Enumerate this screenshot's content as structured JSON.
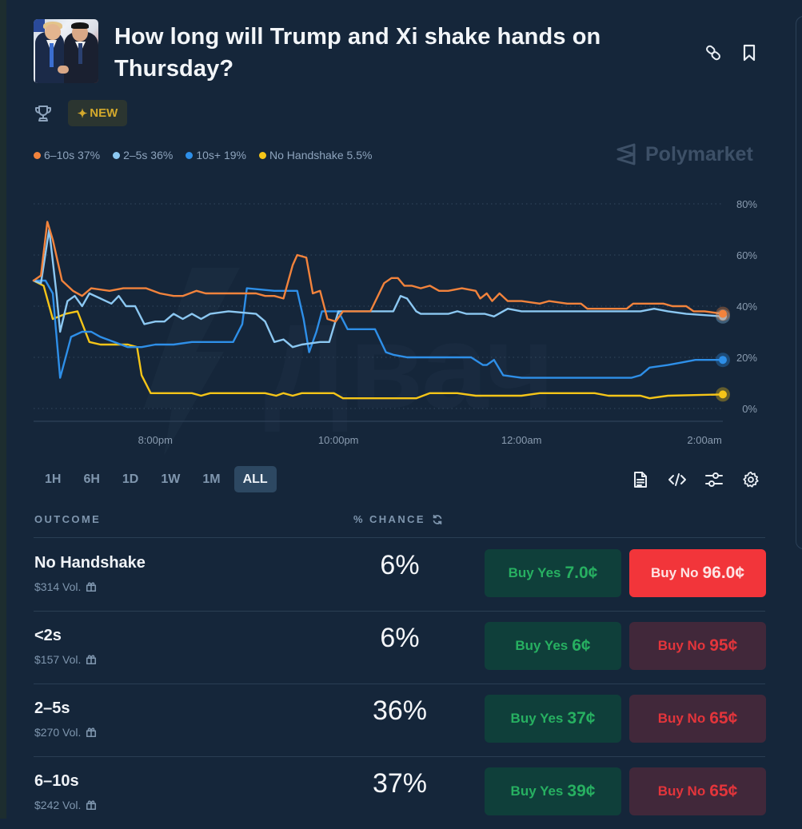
{
  "market": {
    "title": "How long will Trump and Xi shake hands on Thursday?",
    "badge": "NEW",
    "badge_icon": "sparkle-icon",
    "brand": "Polymarket"
  },
  "header_actions": {
    "link_icon": "link-icon",
    "bookmark_icon": "bookmark-icon"
  },
  "legend": [
    {
      "label": "6–10s 37%",
      "color": "#f2833c"
    },
    {
      "label": "2–5s 36%",
      "color": "#8cc8f2"
    },
    {
      "label": "10s+ 19%",
      "color": "#2e8fe8"
    },
    {
      "label": "No Handshake 5.5%",
      "color": "#f5c518"
    }
  ],
  "range_tabs": [
    {
      "label": "1H",
      "active": false
    },
    {
      "label": "6H",
      "active": false
    },
    {
      "label": "1D",
      "active": false
    },
    {
      "label": "1W",
      "active": false
    },
    {
      "label": "1M",
      "active": false
    },
    {
      "label": "ALL",
      "active": true
    }
  ],
  "chart_tools": [
    "document-icon",
    "code-icon",
    "sliders-icon",
    "gear-icon"
  ],
  "table": {
    "col_outcome": "OUTCOME",
    "col_chance": "% CHANCE",
    "rows": [
      {
        "name": "No Handshake",
        "volume": "$314 Vol.",
        "chance": "6%",
        "yes_label": "Buy Yes",
        "yes_price": "7.0¢",
        "no_label": "Buy No",
        "no_price": "96.0¢",
        "no_highlight": true
      },
      {
        "name": "<2s",
        "volume": "$157 Vol.",
        "chance": "6%",
        "yes_label": "Buy Yes",
        "yes_price": "6¢",
        "no_label": "Buy No",
        "no_price": "95¢",
        "no_highlight": false
      },
      {
        "name": "2–5s",
        "volume": "$270 Vol.",
        "chance": "36%",
        "yes_label": "Buy Yes",
        "yes_price": "37¢",
        "no_label": "Buy No",
        "no_price": "65¢",
        "no_highlight": false
      },
      {
        "name": "6–10s",
        "volume": "$242 Vol.",
        "chance": "37%",
        "yes_label": "Buy Yes",
        "yes_price": "39¢",
        "no_label": "Buy No",
        "no_price": "65¢",
        "no_highlight": false
      }
    ]
  },
  "chart_data": {
    "type": "line",
    "title": "",
    "xlabel": "",
    "ylabel": "",
    "x_unit": "hours relative to 8:00pm",
    "xlim": [
      -1.33,
      6.2
    ],
    "ylim": [
      0,
      80
    ],
    "x_ticks": [
      {
        "t": 0,
        "label": "8:00pm"
      },
      {
        "t": 2,
        "label": "10:00pm"
      },
      {
        "t": 4,
        "label": "12:00am"
      },
      {
        "t": 6,
        "label": "2:00am"
      }
    ],
    "y_ticks": [
      {
        "v": 0,
        "label": "0%"
      },
      {
        "v": 20,
        "label": "20%"
      },
      {
        "v": 40,
        "label": "40%"
      },
      {
        "v": 60,
        "label": "60%"
      },
      {
        "v": 80,
        "label": "80%"
      }
    ],
    "grid": true,
    "legend_position": "top-left",
    "series": [
      {
        "name": "6–10s",
        "color": "#f2833c",
        "final": 37,
        "points": [
          [
            -1.33,
            50
          ],
          [
            -1.25,
            52
          ],
          [
            -1.18,
            73
          ],
          [
            -1.12,
            66
          ],
          [
            -1.02,
            50
          ],
          [
            -0.9,
            46
          ],
          [
            -0.8,
            44
          ],
          [
            -0.7,
            47
          ],
          [
            -0.5,
            46
          ],
          [
            -0.35,
            47
          ],
          [
            -0.1,
            47
          ],
          [
            0.05,
            45
          ],
          [
            0.2,
            44
          ],
          [
            0.3,
            44
          ],
          [
            0.45,
            46
          ],
          [
            0.55,
            45
          ],
          [
            0.8,
            45
          ],
          [
            1.1,
            45
          ],
          [
            1.2,
            44
          ],
          [
            1.3,
            44
          ],
          [
            1.4,
            43
          ],
          [
            1.5,
            56
          ],
          [
            1.55,
            60
          ],
          [
            1.65,
            59
          ],
          [
            1.72,
            45
          ],
          [
            1.8,
            46
          ],
          [
            1.88,
            35
          ],
          [
            1.97,
            34
          ],
          [
            2.05,
            38
          ],
          [
            2.25,
            38
          ],
          [
            2.35,
            38
          ],
          [
            2.5,
            49
          ],
          [
            2.58,
            51
          ],
          [
            2.65,
            51
          ],
          [
            2.72,
            48
          ],
          [
            2.8,
            48
          ],
          [
            2.9,
            47
          ],
          [
            3.0,
            48
          ],
          [
            3.1,
            46
          ],
          [
            3.2,
            46
          ],
          [
            3.35,
            47
          ],
          [
            3.5,
            46
          ],
          [
            3.55,
            43
          ],
          [
            3.62,
            45
          ],
          [
            3.68,
            42
          ],
          [
            3.76,
            45
          ],
          [
            3.85,
            42
          ],
          [
            4.0,
            42
          ],
          [
            4.2,
            41
          ],
          [
            4.3,
            42
          ],
          [
            4.5,
            41
          ],
          [
            4.65,
            41
          ],
          [
            4.72,
            39
          ],
          [
            5.15,
            39
          ],
          [
            5.22,
            41
          ],
          [
            5.55,
            41
          ],
          [
            5.65,
            40
          ],
          [
            5.8,
            40
          ],
          [
            5.88,
            38
          ],
          [
            6.0,
            38
          ],
          [
            6.2,
            37
          ]
        ]
      },
      {
        "name": "2–5s",
        "color": "#8cc8f2",
        "final": 36,
        "points": [
          [
            -1.33,
            50
          ],
          [
            -1.25,
            49
          ],
          [
            -1.16,
            70
          ],
          [
            -1.08,
            45
          ],
          [
            -1.04,
            30
          ],
          [
            -0.96,
            42
          ],
          [
            -0.88,
            44
          ],
          [
            -0.8,
            40
          ],
          [
            -0.72,
            45
          ],
          [
            -0.6,
            43
          ],
          [
            -0.48,
            41
          ],
          [
            -0.4,
            44
          ],
          [
            -0.32,
            40
          ],
          [
            -0.22,
            40
          ],
          [
            -0.12,
            33
          ],
          [
            0.0,
            34
          ],
          [
            0.1,
            34
          ],
          [
            0.2,
            37
          ],
          [
            0.3,
            35
          ],
          [
            0.4,
            37
          ],
          [
            0.5,
            35
          ],
          [
            0.6,
            37
          ],
          [
            0.8,
            38
          ],
          [
            1.1,
            37
          ],
          [
            1.2,
            34
          ],
          [
            1.3,
            26
          ],
          [
            1.4,
            27
          ],
          [
            1.5,
            24
          ],
          [
            1.6,
            25
          ],
          [
            1.8,
            26
          ],
          [
            1.9,
            26
          ],
          [
            2.0,
            38
          ],
          [
            2.6,
            38
          ],
          [
            2.68,
            44
          ],
          [
            2.75,
            43
          ],
          [
            2.85,
            38
          ],
          [
            2.9,
            37
          ],
          [
            3.0,
            37
          ],
          [
            3.2,
            37
          ],
          [
            3.3,
            38
          ],
          [
            3.4,
            37
          ],
          [
            3.6,
            37
          ],
          [
            3.7,
            36
          ],
          [
            3.85,
            39
          ],
          [
            4.0,
            38
          ],
          [
            4.5,
            38
          ],
          [
            5.3,
            38
          ],
          [
            5.45,
            39
          ],
          [
            5.6,
            38
          ],
          [
            5.8,
            37
          ],
          [
            6.2,
            36
          ]
        ]
      },
      {
        "name": "10s+",
        "color": "#2e8fe8",
        "final": 19,
        "points": [
          [
            -1.33,
            50
          ],
          [
            -1.2,
            50
          ],
          [
            -1.12,
            45
          ],
          [
            -1.04,
            12
          ],
          [
            -0.98,
            20
          ],
          [
            -0.92,
            28
          ],
          [
            -0.8,
            30
          ],
          [
            -0.7,
            30
          ],
          [
            -0.6,
            28
          ],
          [
            -0.45,
            26
          ],
          [
            -0.3,
            24
          ],
          [
            -0.15,
            24
          ],
          [
            0.0,
            25
          ],
          [
            0.2,
            25
          ],
          [
            0.4,
            26
          ],
          [
            0.6,
            26
          ],
          [
            0.85,
            26
          ],
          [
            0.95,
            33
          ],
          [
            1.0,
            47
          ],
          [
            1.3,
            46
          ],
          [
            1.5,
            46
          ],
          [
            1.55,
            46
          ],
          [
            1.62,
            35
          ],
          [
            1.68,
            22
          ],
          [
            1.76,
            30
          ],
          [
            1.82,
            38
          ],
          [
            1.92,
            38
          ],
          [
            2.0,
            38
          ],
          [
            2.1,
            31
          ],
          [
            2.4,
            31
          ],
          [
            2.52,
            22
          ],
          [
            2.6,
            21
          ],
          [
            2.75,
            20
          ],
          [
            2.9,
            20
          ],
          [
            3.0,
            20
          ],
          [
            3.2,
            20
          ],
          [
            3.45,
            20
          ],
          [
            3.58,
            17
          ],
          [
            3.62,
            17
          ],
          [
            3.7,
            19
          ],
          [
            3.8,
            13
          ],
          [
            4.0,
            12
          ],
          [
            4.3,
            12
          ],
          [
            4.9,
            12
          ],
          [
            5.2,
            12
          ],
          [
            5.3,
            13
          ],
          [
            5.4,
            16
          ],
          [
            5.6,
            17
          ],
          [
            5.75,
            18
          ],
          [
            5.9,
            19
          ],
          [
            6.2,
            19
          ]
        ]
      },
      {
        "name": "No Handshake",
        "color": "#f5c518",
        "final": 5.5,
        "points": [
          [
            -1.33,
            50
          ],
          [
            -1.22,
            48
          ],
          [
            -1.12,
            35
          ],
          [
            -0.98,
            37
          ],
          [
            -0.85,
            38
          ],
          [
            -0.72,
            26
          ],
          [
            -0.6,
            25
          ],
          [
            -0.3,
            25
          ],
          [
            -0.2,
            24
          ],
          [
            -0.15,
            13
          ],
          [
            -0.05,
            6
          ],
          [
            0.4,
            6
          ],
          [
            0.5,
            5
          ],
          [
            0.6,
            6
          ],
          [
            1.2,
            6
          ],
          [
            1.32,
            5
          ],
          [
            1.4,
            6
          ],
          [
            1.5,
            5
          ],
          [
            1.6,
            6
          ],
          [
            1.95,
            6
          ],
          [
            2.05,
            4
          ],
          [
            2.4,
            4
          ],
          [
            2.85,
            4
          ],
          [
            3.0,
            6
          ],
          [
            3.3,
            6
          ],
          [
            3.5,
            5
          ],
          [
            3.6,
            5
          ],
          [
            4.0,
            5
          ],
          [
            4.2,
            6
          ],
          [
            4.8,
            6
          ],
          [
            4.95,
            5
          ],
          [
            5.3,
            5
          ],
          [
            5.4,
            4
          ],
          [
            5.6,
            5
          ],
          [
            6.2,
            5.5
          ]
        ]
      }
    ]
  }
}
